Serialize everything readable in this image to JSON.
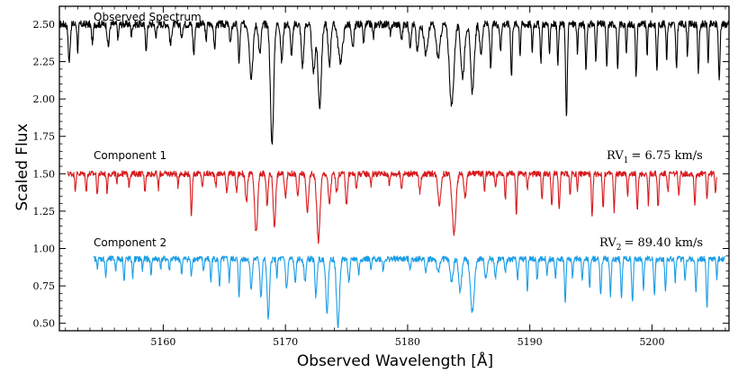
{
  "chart_data": {
    "type": "line",
    "xlabel": "Observed Wavelength [Å]",
    "ylabel": "Scaled Flux",
    "xlim": [
      5151.5,
      5206.3
    ],
    "ylim": [
      0.45,
      2.62
    ],
    "x_ticks": [
      5160,
      5170,
      5180,
      5190,
      5200
    ],
    "y_ticks": [
      0.5,
      0.75,
      1.0,
      1.25,
      1.5,
      1.75,
      2.0,
      2.25,
      2.5
    ],
    "y_tick_labels": [
      "0.50",
      "0.75",
      "1.00",
      "1.25",
      "1.50",
      "1.75",
      "2.00",
      "2.25",
      "2.50"
    ],
    "series": [
      {
        "name": "Observed Spectrum",
        "color": "#000000",
        "label": "Observed Spectrum",
        "x_range": [
          5151.5,
          5206.3
        ],
        "continuum": 2.5,
        "noise": 0.025,
        "lines": [
          [
            5152.3,
            0.25,
            0.08
          ],
          [
            5153.0,
            0.18,
            0.05
          ],
          [
            5154.2,
            0.12,
            0.07
          ],
          [
            5155.5,
            0.15,
            0.08
          ],
          [
            5156.3,
            0.1,
            0.05
          ],
          [
            5157.4,
            0.08,
            0.05
          ],
          [
            5158.6,
            0.16,
            0.07
          ],
          [
            5159.4,
            0.1,
            0.05
          ],
          [
            5160.6,
            0.14,
            0.08
          ],
          [
            5161.5,
            0.1,
            0.06
          ],
          [
            5162.5,
            0.2,
            0.07
          ],
          [
            5163.5,
            0.12,
            0.05
          ],
          [
            5164.2,
            0.18,
            0.06
          ],
          [
            5165.5,
            0.12,
            0.08
          ],
          [
            5166.2,
            0.25,
            0.07
          ],
          [
            5167.2,
            0.35,
            0.14
          ],
          [
            5167.9,
            0.2,
            0.1
          ],
          [
            5168.9,
            0.8,
            0.13
          ],
          [
            5169.7,
            0.25,
            0.09
          ],
          [
            5170.5,
            0.2,
            0.09
          ],
          [
            5171.4,
            0.28,
            0.1
          ],
          [
            5172.3,
            0.32,
            0.13
          ],
          [
            5172.8,
            0.55,
            0.14
          ],
          [
            5173.6,
            0.28,
            0.1
          ],
          [
            5174.5,
            0.25,
            0.18
          ],
          [
            5175.5,
            0.16,
            0.1
          ],
          [
            5176.4,
            0.12,
            0.07
          ],
          [
            5177.2,
            0.09,
            0.06
          ],
          [
            5178.6,
            0.08,
            0.06
          ],
          [
            5179.5,
            0.1,
            0.08
          ],
          [
            5180.2,
            0.14,
            0.08
          ],
          [
            5180.8,
            0.18,
            0.1
          ],
          [
            5181.5,
            0.2,
            0.15
          ],
          [
            5182.5,
            0.22,
            0.16
          ],
          [
            5183.6,
            0.55,
            0.18
          ],
          [
            5184.5,
            0.35,
            0.15
          ],
          [
            5185.3,
            0.45,
            0.15
          ],
          [
            5186.0,
            0.2,
            0.1
          ],
          [
            5186.8,
            0.3,
            0.07
          ],
          [
            5187.6,
            0.18,
            0.06
          ],
          [
            5188.5,
            0.35,
            0.06
          ],
          [
            5189.2,
            0.2,
            0.05
          ],
          [
            5190.2,
            0.18,
            0.05
          ],
          [
            5190.9,
            0.25,
            0.06
          ],
          [
            5191.6,
            0.2,
            0.05
          ],
          [
            5192.3,
            0.25,
            0.06
          ],
          [
            5193.0,
            0.62,
            0.07
          ],
          [
            5193.9,
            0.2,
            0.05
          ],
          [
            5194.6,
            0.3,
            0.06
          ],
          [
            5195.4,
            0.25,
            0.05
          ],
          [
            5196.3,
            0.28,
            0.06
          ],
          [
            5197.2,
            0.3,
            0.06
          ],
          [
            5197.9,
            0.2,
            0.05
          ],
          [
            5198.7,
            0.35,
            0.06
          ],
          [
            5199.6,
            0.2,
            0.05
          ],
          [
            5200.4,
            0.3,
            0.06
          ],
          [
            5201.2,
            0.22,
            0.05
          ],
          [
            5202.0,
            0.3,
            0.06
          ],
          [
            5202.9,
            0.2,
            0.05
          ],
          [
            5203.8,
            0.32,
            0.06
          ],
          [
            5204.6,
            0.25,
            0.05
          ],
          [
            5205.5,
            0.38,
            0.06
          ]
        ]
      },
      {
        "name": "Component 1",
        "color": "#d7191c",
        "label": "Component 1",
        "rv_label": "RV_1 = 6.75 km/s",
        "rv_main": "RV",
        "rv_sub": "1",
        "rv_value": "= 6.75 km/s",
        "x_range": [
          5152.2,
          5205.3
        ],
        "continuum": 1.5,
        "noise": 0.02,
        "lines": [
          [
            5152.8,
            0.1,
            0.05
          ],
          [
            5153.7,
            0.12,
            0.05
          ],
          [
            5154.6,
            0.15,
            0.05
          ],
          [
            5155.4,
            0.12,
            0.05
          ],
          [
            5156.2,
            0.08,
            0.04
          ],
          [
            5157.2,
            0.08,
            0.05
          ],
          [
            5158.5,
            0.12,
            0.05
          ],
          [
            5159.6,
            0.1,
            0.05
          ],
          [
            5161.2,
            0.08,
            0.05
          ],
          [
            5162.3,
            0.28,
            0.06
          ],
          [
            5163.2,
            0.1,
            0.05
          ],
          [
            5164.3,
            0.08,
            0.05
          ],
          [
            5165.2,
            0.12,
            0.06
          ],
          [
            5166.0,
            0.12,
            0.06
          ],
          [
            5166.8,
            0.2,
            0.08
          ],
          [
            5167.6,
            0.4,
            0.12
          ],
          [
            5168.5,
            0.2,
            0.08
          ],
          [
            5169.1,
            0.35,
            0.1
          ],
          [
            5170.0,
            0.15,
            0.08
          ],
          [
            5171.0,
            0.15,
            0.08
          ],
          [
            5171.8,
            0.25,
            0.1
          ],
          [
            5172.7,
            0.45,
            0.13
          ],
          [
            5173.6,
            0.2,
            0.1
          ],
          [
            5174.2,
            0.12,
            0.08
          ],
          [
            5175.0,
            0.2,
            0.08
          ],
          [
            5175.8,
            0.1,
            0.06
          ],
          [
            5177.0,
            0.08,
            0.05
          ],
          [
            5178.5,
            0.08,
            0.05
          ],
          [
            5179.5,
            0.1,
            0.06
          ],
          [
            5181.0,
            0.12,
            0.08
          ],
          [
            5182.6,
            0.2,
            0.12
          ],
          [
            5183.8,
            0.4,
            0.15
          ],
          [
            5184.7,
            0.15,
            0.1
          ],
          [
            5186.3,
            0.12,
            0.05
          ],
          [
            5187.2,
            0.1,
            0.05
          ],
          [
            5188.0,
            0.18,
            0.05
          ],
          [
            5188.9,
            0.28,
            0.05
          ],
          [
            5189.8,
            0.1,
            0.05
          ],
          [
            5191.0,
            0.18,
            0.05
          ],
          [
            5191.8,
            0.22,
            0.06
          ],
          [
            5192.4,
            0.25,
            0.06
          ],
          [
            5193.3,
            0.15,
            0.05
          ],
          [
            5193.9,
            0.1,
            0.05
          ],
          [
            5195.1,
            0.3,
            0.06
          ],
          [
            5196.0,
            0.22,
            0.06
          ],
          [
            5196.9,
            0.25,
            0.06
          ],
          [
            5198.0,
            0.15,
            0.05
          ],
          [
            5198.8,
            0.25,
            0.06
          ],
          [
            5199.7,
            0.2,
            0.05
          ],
          [
            5200.5,
            0.22,
            0.06
          ],
          [
            5201.3,
            0.12,
            0.05
          ],
          [
            5202.2,
            0.15,
            0.05
          ],
          [
            5203.5,
            0.2,
            0.06
          ],
          [
            5204.5,
            0.18,
            0.05
          ],
          [
            5205.2,
            0.12,
            0.05
          ]
        ]
      },
      {
        "name": "Component 2",
        "color": "#1a9ee6",
        "label": "Component 2",
        "rv_label": "RV_2 = 89.40 km/s",
        "rv_main": "RV",
        "rv_sub": "2",
        "rv_value": "= 89.40 km/s",
        "x_range": [
          5154.3,
          5206.0
        ],
        "continuum": 0.93,
        "noise": 0.02,
        "lines": [
          [
            5154.6,
            0.05,
            0.05
          ],
          [
            5155.3,
            0.12,
            0.05
          ],
          [
            5156.1,
            0.08,
            0.04
          ],
          [
            5156.8,
            0.15,
            0.05
          ],
          [
            5157.5,
            0.12,
            0.05
          ],
          [
            5158.3,
            0.08,
            0.04
          ],
          [
            5159.0,
            0.1,
            0.05
          ],
          [
            5159.8,
            0.06,
            0.04
          ],
          [
            5160.5,
            0.08,
            0.05
          ],
          [
            5161.5,
            0.1,
            0.05
          ],
          [
            5162.3,
            0.12,
            0.05
          ],
          [
            5163.3,
            0.08,
            0.05
          ],
          [
            5163.9,
            0.15,
            0.05
          ],
          [
            5164.6,
            0.18,
            0.06
          ],
          [
            5165.4,
            0.15,
            0.05
          ],
          [
            5166.2,
            0.25,
            0.06
          ],
          [
            5167.2,
            0.2,
            0.08
          ],
          [
            5168.0,
            0.25,
            0.08
          ],
          [
            5168.6,
            0.4,
            0.1
          ],
          [
            5169.3,
            0.12,
            0.05
          ],
          [
            5170.1,
            0.2,
            0.08
          ],
          [
            5170.8,
            0.15,
            0.08
          ],
          [
            5171.6,
            0.15,
            0.08
          ],
          [
            5172.5,
            0.25,
            0.08
          ],
          [
            5173.4,
            0.35,
            0.1
          ],
          [
            5174.3,
            0.45,
            0.12
          ],
          [
            5175.2,
            0.15,
            0.08
          ],
          [
            5176.0,
            0.1,
            0.06
          ],
          [
            5177.0,
            0.08,
            0.05
          ],
          [
            5178.0,
            0.08,
            0.05
          ],
          [
            5180.2,
            0.06,
            0.06
          ],
          [
            5181.5,
            0.08,
            0.08
          ],
          [
            5182.5,
            0.1,
            0.1
          ],
          [
            5183.6,
            0.15,
            0.12
          ],
          [
            5184.3,
            0.22,
            0.12
          ],
          [
            5185.3,
            0.35,
            0.16
          ],
          [
            5186.4,
            0.12,
            0.1
          ],
          [
            5187.2,
            0.12,
            0.08
          ],
          [
            5188.0,
            0.1,
            0.06
          ],
          [
            5189.0,
            0.15,
            0.05
          ],
          [
            5189.8,
            0.2,
            0.05
          ],
          [
            5190.6,
            0.15,
            0.05
          ],
          [
            5191.4,
            0.1,
            0.05
          ],
          [
            5192.1,
            0.15,
            0.05
          ],
          [
            5192.9,
            0.3,
            0.06
          ],
          [
            5193.5,
            0.12,
            0.05
          ],
          [
            5194.3,
            0.15,
            0.05
          ],
          [
            5194.9,
            0.2,
            0.05
          ],
          [
            5195.8,
            0.25,
            0.06
          ],
          [
            5196.6,
            0.25,
            0.06
          ],
          [
            5197.5,
            0.25,
            0.06
          ],
          [
            5198.4,
            0.3,
            0.06
          ],
          [
            5199.3,
            0.2,
            0.05
          ],
          [
            5200.2,
            0.25,
            0.06
          ],
          [
            5201.1,
            0.2,
            0.06
          ],
          [
            5201.9,
            0.15,
            0.05
          ],
          [
            5202.7,
            0.15,
            0.05
          ],
          [
            5203.6,
            0.22,
            0.06
          ],
          [
            5204.5,
            0.32,
            0.06
          ],
          [
            5205.3,
            0.12,
            0.05
          ]
        ]
      }
    ]
  }
}
